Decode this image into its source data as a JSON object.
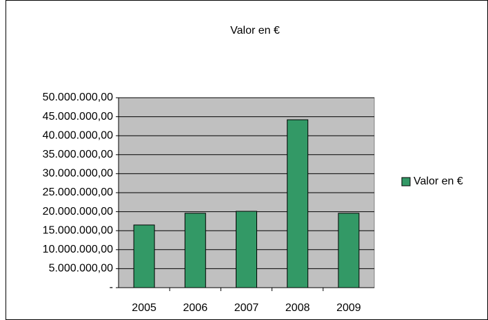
{
  "chart_data": {
    "type": "bar",
    "title": "Valor en €",
    "categories": [
      "2005",
      "2006",
      "2007",
      "2008",
      "2009"
    ],
    "series": [
      {
        "name": "Valor en €",
        "color": "#339966",
        "values": [
          16500000,
          19600000,
          20100000,
          44200000,
          19600000
        ]
      }
    ],
    "ylim": [
      0,
      50000000
    ],
    "yticks": [
      {
        "value": 0,
        "label": "-"
      },
      {
        "value": 5000000,
        "label": "5.000.000,00"
      },
      {
        "value": 10000000,
        "label": "10.000.000,00"
      },
      {
        "value": 15000000,
        "label": "15.000.000,00"
      },
      {
        "value": 20000000,
        "label": "20.000.000,00"
      },
      {
        "value": 25000000,
        "label": "25.000.000,00"
      },
      {
        "value": 30000000,
        "label": "30.000.000,00"
      },
      {
        "value": 35000000,
        "label": "35.000.000,00"
      },
      {
        "value": 40000000,
        "label": "40.000.000,00"
      },
      {
        "value": 45000000,
        "label": "45.000.000,00"
      },
      {
        "value": 50000000,
        "label": "50.000.000,00"
      }
    ],
    "grid": true,
    "legend": "right"
  }
}
